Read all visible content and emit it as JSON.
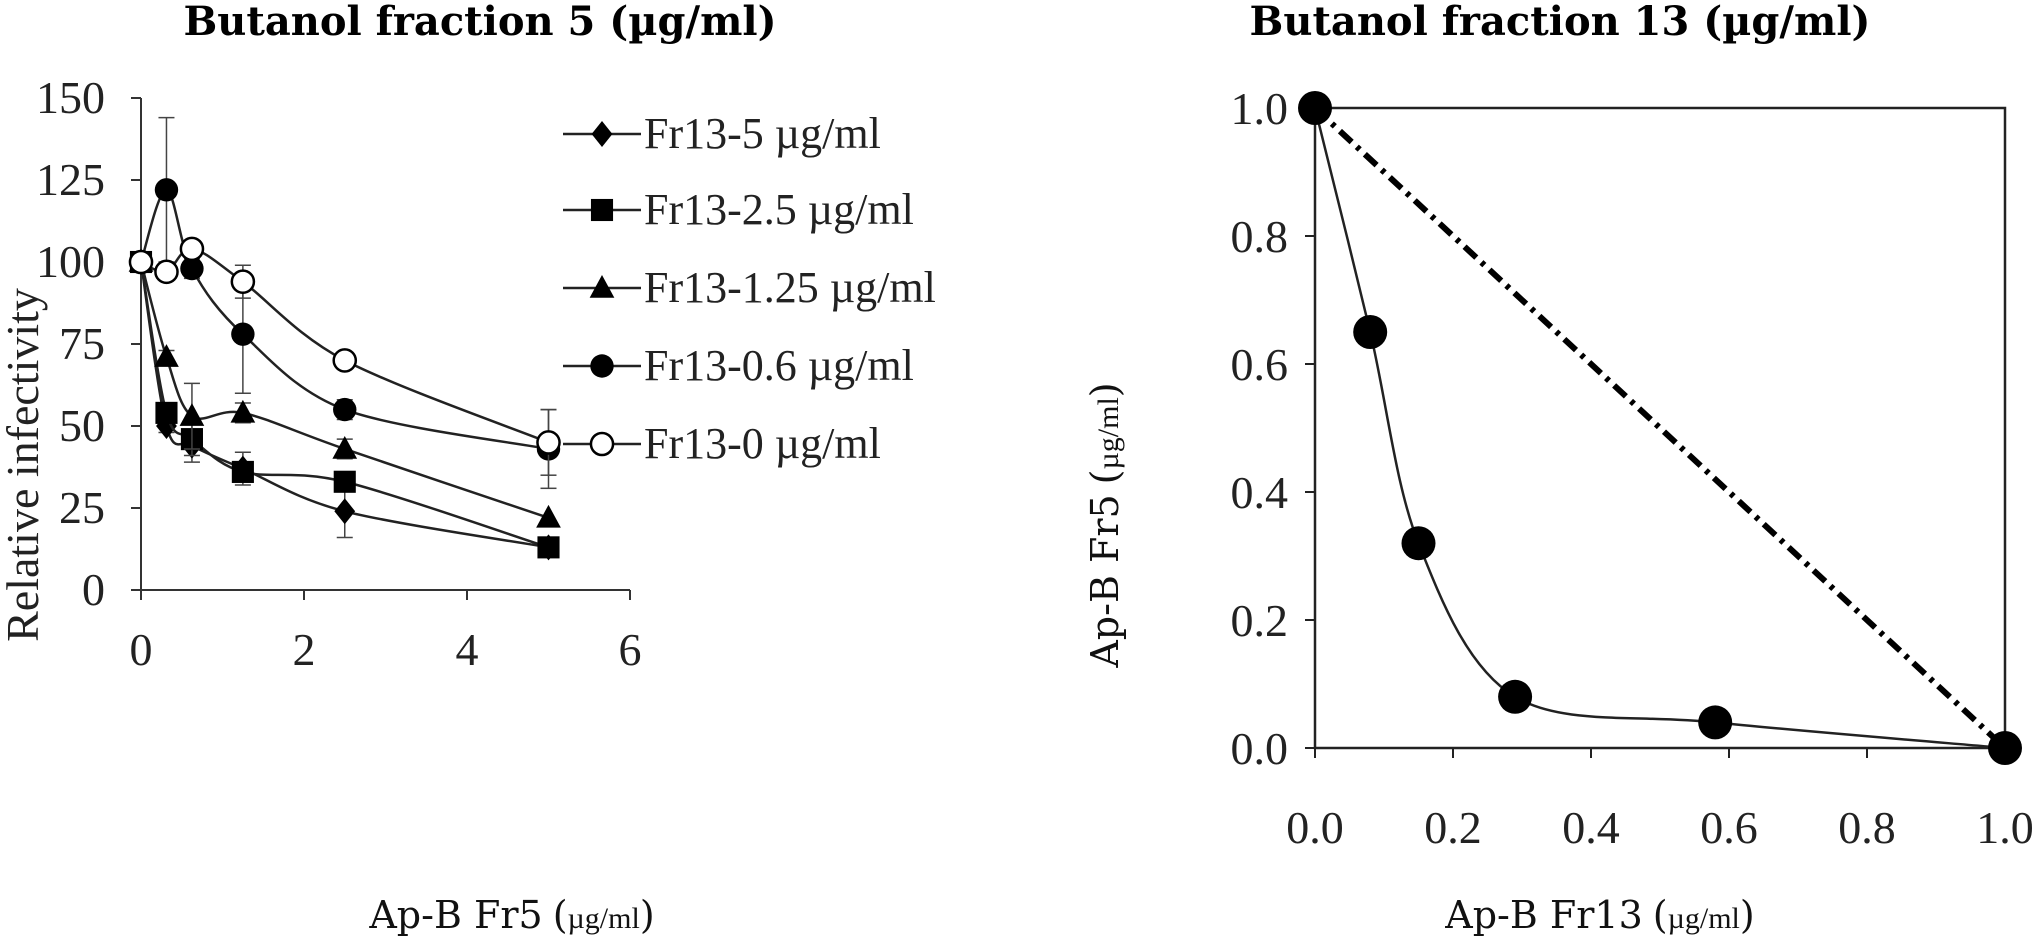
{
  "chart_data": [
    {
      "type": "line",
      "title": "Butanol fraction 5 (µg/ml)",
      "xlabel": "Ap-B Fr5",
      "xlabel_unit": "µg/ml",
      "ylabel": "Relative infectivity",
      "xlim": [
        0,
        6
      ],
      "ylim": [
        0,
        150
      ],
      "xticks": [
        "0",
        "2",
        "4",
        "6"
      ],
      "yticks": [
        "0",
        "25",
        "50",
        "75",
        "100",
        "125",
        "150"
      ],
      "legend_position": "top-right",
      "grid": false,
      "series": [
        {
          "name": "Fr13-5 µg/ml",
          "marker": "diamond",
          "x": [
            0,
            0.3125,
            0.625,
            1.25,
            2.5,
            5
          ],
          "y": [
            100,
            50,
            44,
            37,
            24,
            13
          ],
          "err": [
            0,
            2,
            5,
            5,
            8,
            0
          ]
        },
        {
          "name": "Fr13-2.5 µg/ml",
          "marker": "square",
          "x": [
            0,
            0.3125,
            0.625,
            1.25,
            2.5,
            5
          ],
          "y": [
            100,
            54,
            46,
            36,
            33,
            13
          ],
          "err": [
            0,
            3,
            5,
            3,
            3,
            0
          ]
        },
        {
          "name": "Fr13-1.25 µg/ml",
          "marker": "triangle",
          "x": [
            0,
            0.3125,
            0.625,
            1.25,
            2.5,
            5
          ],
          "y": [
            100,
            71,
            53,
            54,
            43,
            22
          ],
          "err": [
            0,
            2,
            10,
            3,
            3,
            0
          ]
        },
        {
          "name": "Fr13-0.6 µg/ml",
          "marker": "filled-circle",
          "x": [
            0,
            0.3125,
            0.625,
            1.25,
            2.5,
            5
          ],
          "y": [
            100,
            122,
            98,
            78,
            55,
            43
          ],
          "err": [
            0,
            22,
            3,
            18,
            3,
            12
          ]
        },
        {
          "name": "Fr13-0 µg/ml",
          "marker": "open-circle",
          "x": [
            0,
            0.3125,
            0.625,
            1.25,
            2.5,
            5
          ],
          "y": [
            100,
            97,
            104,
            94,
            70,
            45
          ],
          "err": [
            0,
            0,
            0,
            5,
            0,
            10
          ]
        }
      ]
    },
    {
      "type": "scatter",
      "title": "Butanol fraction 13 (µg/ml)",
      "xlabel": "Ap-B Fr13",
      "xlabel_unit": "µg/ml",
      "ylabel": "Ap-B Fr5",
      "ylabel_unit": "µg/ml",
      "xlim": [
        0,
        1
      ],
      "ylim": [
        0,
        1
      ],
      "xticks": [
        "0.0",
        "0.2",
        "0.4",
        "0.6",
        "0.8",
        "1.0"
      ],
      "yticks": [
        "0.0",
        "0.2",
        "0.4",
        "0.6",
        "0.8",
        "1.0"
      ],
      "grid": false,
      "series": [
        {
          "marker": "filled-circle",
          "x": [
            0,
            0.08,
            0.15,
            0.29,
            0.58,
            1.0
          ],
          "y": [
            1.0,
            0.65,
            0.32,
            0.08,
            0.04,
            0.0
          ]
        }
      ],
      "reference_line": {
        "x": [
          0,
          1
        ],
        "y": [
          1,
          0
        ],
        "style": "dash-dot"
      }
    }
  ]
}
